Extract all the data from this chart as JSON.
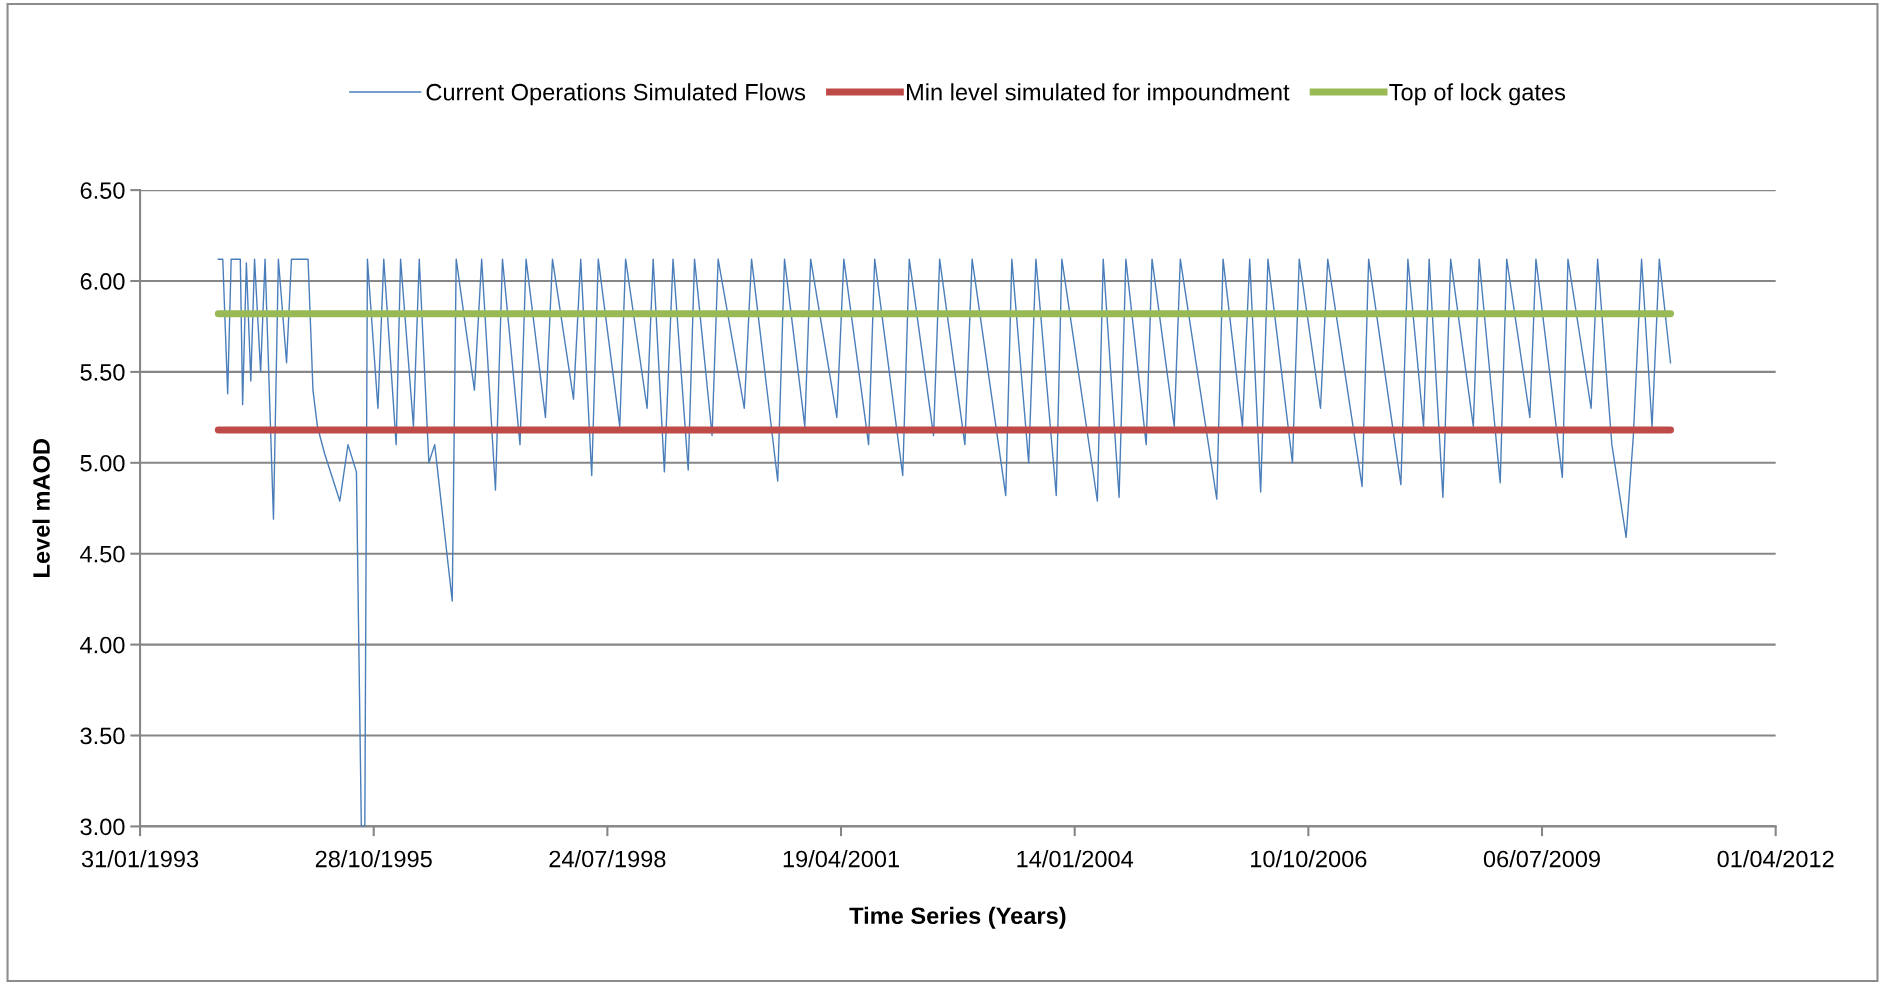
{
  "chart_data": {
    "type": "line",
    "xlabel": "Time Series (Years)",
    "ylabel": "Level mAOD",
    "ylim": [
      3.0,
      6.5
    ],
    "yticks": [
      {
        "value": 3.0,
        "label": "3.00"
      },
      {
        "value": 3.5,
        "label": "3.50"
      },
      {
        "value": 4.0,
        "label": "4.00"
      },
      {
        "value": 4.5,
        "label": "4.50"
      },
      {
        "value": 5.0,
        "label": "5.00"
      },
      {
        "value": 5.5,
        "label": "5.50"
      },
      {
        "value": 6.0,
        "label": "6.00"
      },
      {
        "value": 6.5,
        "label": "6.50"
      }
    ],
    "xlim": [
      "1993-01-31",
      "2012-04-01"
    ],
    "xticks": [
      {
        "value": "1993-01-31",
        "label": "31/01/1993"
      },
      {
        "value": "1995-10-28",
        "label": "28/10/1995"
      },
      {
        "value": "1998-07-24",
        "label": "24/07/1998"
      },
      {
        "value": "2001-04-19",
        "label": "19/04/2001"
      },
      {
        "value": "2004-01-14",
        "label": "14/01/2004"
      },
      {
        "value": "2006-10-10",
        "label": "10/10/2006"
      },
      {
        "value": "2009-07-06",
        "label": "06/07/2009"
      },
      {
        "value": "2012-04-01",
        "label": "01/04/2012"
      }
    ],
    "grid": "y",
    "legend": "top",
    "marker": "none",
    "line_style": "solid",
    "series": [
      {
        "name": "Current Operations Simulated Flows",
        "color": "#4a7ebb",
        "x": [
          "1994-01-01",
          "1994-01-20",
          "1994-02-10",
          "1994-02-25",
          "1994-04-05",
          "1994-04-15",
          "1994-05-01",
          "1994-05-20",
          "1994-06-05",
          "1994-07-01",
          "1994-07-20",
          "1994-08-25",
          "1994-09-15",
          "1994-10-20",
          "1994-11-10",
          "1995-01-20",
          "1995-02-10",
          "1995-03-01",
          "1995-04-01",
          "1995-06-05",
          "1995-07-10",
          "1995-08-15",
          "1995-09-05",
          "1995-09-20",
          "1995-10-01",
          "1995-11-15",
          "1995-12-10",
          "1996-02-01",
          "1996-02-20",
          "1996-04-15",
          "1996-05-10",
          "1996-06-20",
          "1996-07-15",
          "1996-09-28",
          "1996-10-15",
          "1997-01-01",
          "1997-02-01",
          "1997-04-01",
          "1997-05-01",
          "1997-07-15",
          "1997-08-10",
          "1997-11-01",
          "1997-12-01",
          "1998-03-01",
          "1998-04-01",
          "1998-05-18",
          "1998-06-15",
          "1998-09-15",
          "1998-10-10",
          "1999-01-10",
          "1999-02-05",
          "1999-03-25",
          "1999-05-01",
          "1999-07-05",
          "1999-08-01",
          "1999-10-15",
          "1999-11-10",
          "2000-03-01",
          "2000-04-01",
          "2000-07-22",
          "2000-08-20",
          "2000-11-15",
          "2000-12-10",
          "2001-04-01",
          "2001-05-01",
          "2001-08-15",
          "2001-09-10",
          "2002-01-08",
          "2002-02-05",
          "2002-05-20",
          "2002-06-15",
          "2002-10-01",
          "2002-11-01",
          "2003-03-25",
          "2003-04-20",
          "2003-07-01",
          "2003-08-01",
          "2003-10-27",
          "2003-11-20",
          "2004-04-20",
          "2004-05-15",
          "2004-07-22",
          "2004-08-20",
          "2004-11-15",
          "2004-12-10",
          "2005-03-15",
          "2005-04-10",
          "2005-09-13",
          "2005-10-10",
          "2006-01-01",
          "2006-02-01",
          "2006-03-20",
          "2006-04-20",
          "2006-08-03",
          "2006-09-01",
          "2006-12-01",
          "2007-01-01",
          "2007-05-28",
          "2007-06-25",
          "2007-11-10",
          "2007-12-10",
          "2008-02-15",
          "2008-03-10",
          "2008-05-08",
          "2008-06-10",
          "2008-09-15",
          "2008-10-10",
          "2009-01-08",
          "2009-02-05",
          "2009-05-15",
          "2009-06-10",
          "2009-10-01",
          "2009-10-25",
          "2010-02-01",
          "2010-03-01",
          "2010-05-01",
          "2010-07-01",
          "2010-08-01",
          "2010-09-05",
          "2010-10-20",
          "2010-11-20",
          "2011-01-07"
        ],
        "values": [
          6.12,
          6.12,
          5.38,
          6.12,
          6.12,
          5.32,
          6.1,
          5.45,
          6.12,
          5.5,
          6.12,
          4.69,
          6.12,
          5.55,
          6.12,
          6.12,
          5.4,
          5.2,
          5.05,
          4.79,
          5.1,
          4.95,
          3.0,
          3.0,
          6.12,
          5.3,
          6.12,
          5.1,
          6.12,
          5.2,
          6.12,
          5.0,
          5.1,
          4.24,
          6.12,
          5.4,
          6.12,
          4.85,
          6.12,
          5.1,
          6.12,
          5.25,
          6.12,
          5.35,
          6.12,
          4.93,
          6.12,
          5.2,
          6.12,
          5.3,
          6.12,
          4.95,
          6.12,
          4.96,
          6.12,
          5.15,
          6.12,
          5.3,
          6.12,
          4.9,
          6.12,
          5.2,
          6.12,
          5.25,
          6.12,
          5.1,
          6.12,
          4.93,
          6.12,
          5.15,
          6.12,
          5.1,
          6.12,
          4.82,
          6.12,
          5.0,
          6.12,
          4.82,
          6.12,
          4.79,
          6.12,
          4.81,
          6.12,
          5.1,
          6.12,
          5.2,
          6.12,
          4.8,
          6.12,
          5.2,
          6.12,
          4.84,
          6.12,
          5.0,
          6.12,
          5.3,
          6.12,
          4.87,
          6.12,
          4.88,
          6.12,
          5.2,
          6.12,
          4.81,
          6.12,
          5.2,
          6.12,
          4.89,
          6.12,
          5.25,
          6.12,
          4.92,
          6.12,
          5.3,
          6.12,
          5.1,
          4.59,
          5.15,
          6.12,
          5.2,
          6.12,
          5.55
        ]
      }
    ],
    "ref_lines": [
      {
        "axis": "y",
        "value": 5.18,
        "label": "Min level simulated for impoundment",
        "color": "#be4b48"
      },
      {
        "axis": "y",
        "value": 5.82,
        "label": "Top of lock gates",
        "color": "#98b954"
      }
    ]
  }
}
